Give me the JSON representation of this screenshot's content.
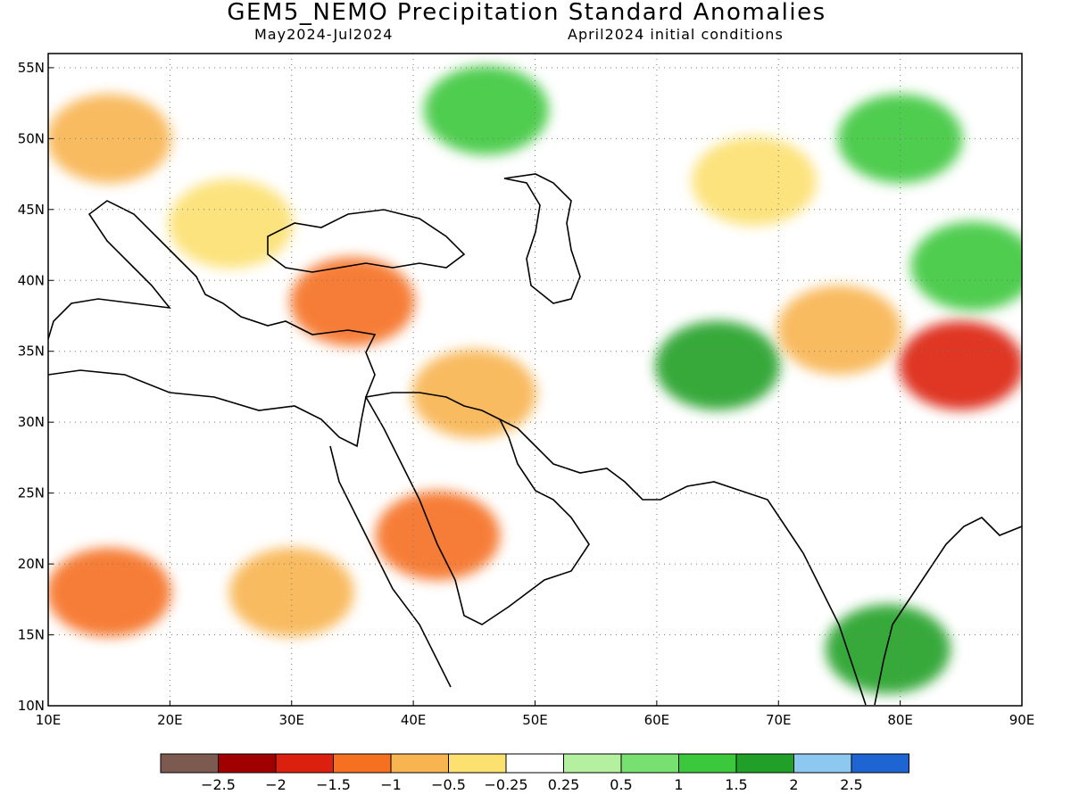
{
  "title": "GEM5_NEMO Precipitation Standard Anomalies",
  "subtitle_left": "May2024-Jul2024",
  "subtitle_right": "April2024 initial conditions",
  "map": {
    "lon_range": [
      10,
      90
    ],
    "lat_range": [
      10,
      56
    ],
    "lon_ticks": [
      "10E",
      "20E",
      "30E",
      "40E",
      "50E",
      "60E",
      "70E",
      "80E",
      "90E"
    ],
    "lat_ticks": [
      "10N",
      "15N",
      "20N",
      "25N",
      "30N",
      "35N",
      "40N",
      "45N",
      "50N",
      "55N"
    ],
    "gridlines": "dotted",
    "regions": [
      {
        "lon": 15,
        "lat": 50,
        "value": -1
      },
      {
        "lon": 25,
        "lat": 44,
        "value": -0.5
      },
      {
        "lon": 35,
        "lat": 38.5,
        "value": -1.5
      },
      {
        "lon": 45,
        "lat": 32,
        "value": -1
      },
      {
        "lon": 42,
        "lat": 22,
        "value": -1.5
      },
      {
        "lon": 15,
        "lat": 18,
        "value": -1.5
      },
      {
        "lon": 30,
        "lat": 18,
        "value": -1
      },
      {
        "lon": 46,
        "lat": 52,
        "value": 1
      },
      {
        "lon": 65,
        "lat": 34,
        "value": 1.5
      },
      {
        "lon": 79,
        "lat": 14,
        "value": 1.5
      },
      {
        "lon": 85,
        "lat": 34,
        "value": -2
      },
      {
        "lon": 86,
        "lat": 41,
        "value": 1
      },
      {
        "lon": 80,
        "lat": 50,
        "value": 1
      },
      {
        "lon": 68,
        "lat": 47,
        "value": -0.5
      },
      {
        "lon": 75,
        "lat": 36.5,
        "value": -1
      }
    ]
  },
  "colorbar": {
    "colors": [
      "#7d5a50",
      "#a00000",
      "#dc2010",
      "#f57020",
      "#f8b450",
      "#fce070",
      "#ffffff",
      "#b4f0a0",
      "#78e070",
      "#3cc83c",
      "#20a028",
      "#8cc8f0",
      "#1e64d2"
    ],
    "labels": [
      "-2.5",
      "-2",
      "-1.5",
      "-1",
      "-0.5",
      "-0.25",
      "0.25",
      "0.5",
      "1",
      "1.5",
      "2",
      "2.5"
    ]
  }
}
